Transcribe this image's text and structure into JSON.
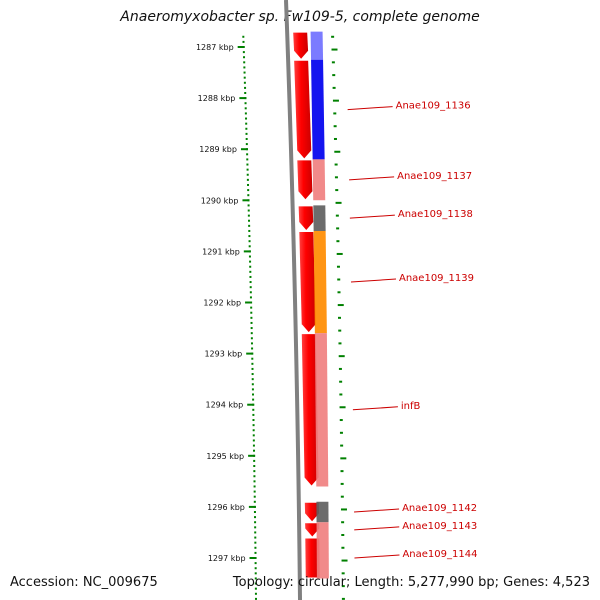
{
  "title": "Anaeromyxobacter sp. Fw109-5, complete genome",
  "footer": {
    "accession": "Accession: NC_009675",
    "topology": "Topology: circular; Length: 5,277,990 bp; Genes: 4,523"
  },
  "scale": {
    "unit": "kbp",
    "ticks": [
      {
        "kbp": 1287,
        "label": "1287 kbp"
      },
      {
        "kbp": 1288,
        "label": "1288 kbp"
      },
      {
        "kbp": 1289,
        "label": "1289 kbp"
      },
      {
        "kbp": 1290,
        "label": "1290 kbp"
      },
      {
        "kbp": 1291,
        "label": "1291 kbp"
      },
      {
        "kbp": 1292,
        "label": "1292 kbp"
      },
      {
        "kbp": 1293,
        "label": "1293 kbp"
      },
      {
        "kbp": 1294,
        "label": "1294 kbp"
      },
      {
        "kbp": 1295,
        "label": "1295 kbp"
      },
      {
        "kbp": 1296,
        "label": "1296 kbp"
      },
      {
        "kbp": 1297,
        "label": "1297 kbp"
      }
    ]
  },
  "genes": [
    {
      "start": 1286.7,
      "end": 1287.25,
      "label": "",
      "color": "#7070ff",
      "pointed": true
    },
    {
      "start": 1287.25,
      "end": 1289.2,
      "label": "Anae109_1136",
      "color": "#0000ee",
      "pointed": true
    },
    {
      "start": 1289.2,
      "end": 1290.0,
      "label": "Anae109_1137",
      "color": "#f08080",
      "pointed": true
    },
    {
      "start": 1290.1,
      "end": 1290.6,
      "label": "Anae109_1138",
      "color": "#606060",
      "pointed": true
    },
    {
      "start": 1290.6,
      "end": 1292.6,
      "label": "Anae109_1139",
      "color": "#ff8c00",
      "pointed": true
    },
    {
      "start": 1292.6,
      "end": 1295.6,
      "label": "infB",
      "color": "#f08080",
      "pointed": true
    },
    {
      "start": 1295.9,
      "end": 1296.3,
      "label": "Anae109_1142",
      "color": "#606060",
      "pointed": true
    },
    {
      "start": 1296.3,
      "end": 1296.6,
      "label": "Anae109_1143",
      "color": "#f08080",
      "pointed": true
    },
    {
      "start": 1296.6,
      "end": 1297.4,
      "label": "Anae109_1144",
      "color": "#f08080",
      "pointed": false
    }
  ],
  "colors": {
    "cds": "#ff0000",
    "backbone": "#808080",
    "tick": "#008000",
    "gene_label": "#cc0000"
  }
}
